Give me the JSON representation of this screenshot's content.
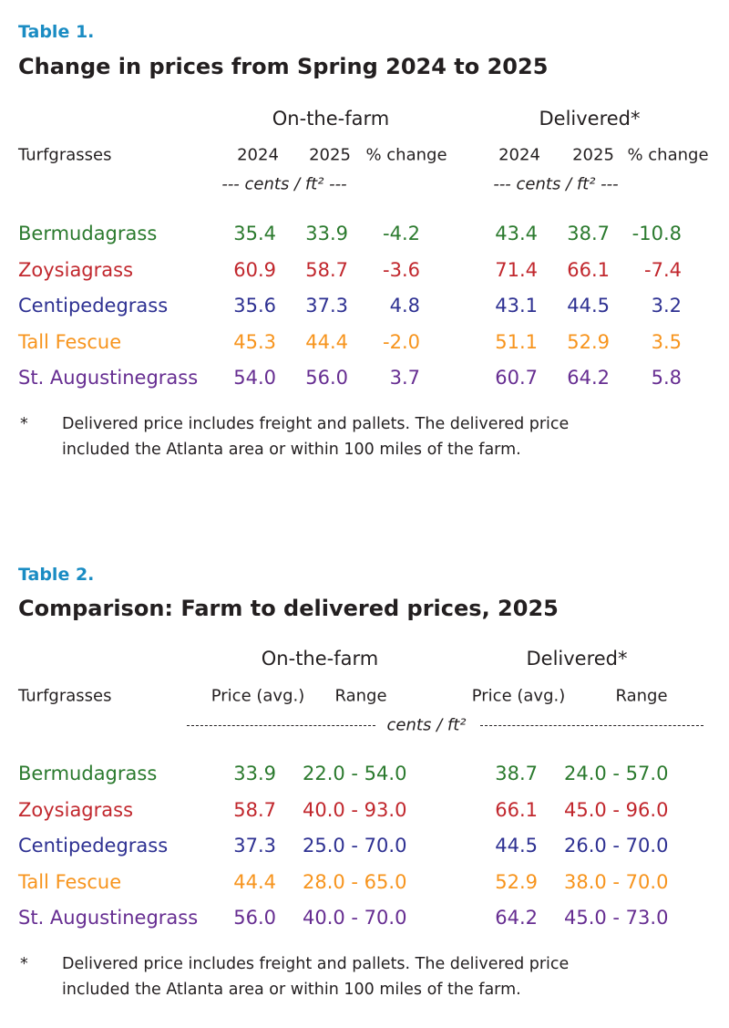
{
  "table1": {
    "label": "Table 1.",
    "title": "Change in prices from Spring 2024 to 2025",
    "group_headers": [
      "On-the-farm",
      "Delivered*"
    ],
    "row_header": "Turfgrasses",
    "columns": [
      "2024",
      "2025",
      "% change",
      "2024",
      "2025",
      "% change"
    ],
    "units": [
      "--- cents / ft² ---",
      "--- cents / ft² ---"
    ],
    "rows": [
      [
        "Bermudagrass",
        "35.4",
        "33.9",
        "-4.2",
        "43.4",
        "38.7",
        "-10.8"
      ],
      [
        "Zoysiagrass",
        "60.9",
        "58.7",
        "-3.6",
        "71.4",
        "66.1",
        "-7.4"
      ],
      [
        "Centipedegrass",
        "35.6",
        "37.3",
        "4.8",
        "43.1",
        "44.5",
        "3.2"
      ],
      [
        "Tall Fescue",
        "45.3",
        "44.4",
        "-2.0",
        "51.1",
        "52.9",
        "3.5"
      ],
      [
        "St. Augustinegrass",
        "54.0",
        "56.0",
        "3.7",
        "60.7",
        "64.2",
        "5.8"
      ]
    ],
    "footnote": {
      "marker": "*",
      "lines": [
        "Delivered price includes freight and pallets. The delivered price",
        "included the Atlanta area or within 100 miles of the farm."
      ]
    }
  },
  "table2": {
    "label": "Table 2.",
    "title": "Comparison: Farm to delivered prices, 2025",
    "group_headers": [
      "On-the-farm",
      "Delivered*"
    ],
    "row_header": "Turfgrasses",
    "columns": [
      "Price (avg.)",
      "Range",
      "Price (avg.)",
      "Range"
    ],
    "units": "cents / ft²",
    "rows": [
      [
        "Bermudagrass",
        "33.9",
        "22.0 - 54.0",
        "38.7",
        "24.0 - 57.0"
      ],
      [
        "Zoysiagrass",
        "58.7",
        "40.0 - 93.0",
        "66.1",
        "45.0 - 96.0"
      ],
      [
        "Centipedegrass",
        "37.3",
        "25.0 - 70.0",
        "44.5",
        "26.0 - 70.0"
      ],
      [
        "Tall Fescue",
        "44.4",
        "28.0 - 65.0",
        "52.9",
        "38.0 - 70.0"
      ],
      [
        "St. Augustinegrass",
        "56.0",
        "40.0 - 70.0",
        "64.2",
        "45.0 - 73.0"
      ]
    ],
    "footnote": {
      "marker": "*",
      "lines": [
        "Delivered price includes freight and pallets. The delivered price",
        "included the Atlanta area or within 100 miles of the farm."
      ]
    }
  }
}
